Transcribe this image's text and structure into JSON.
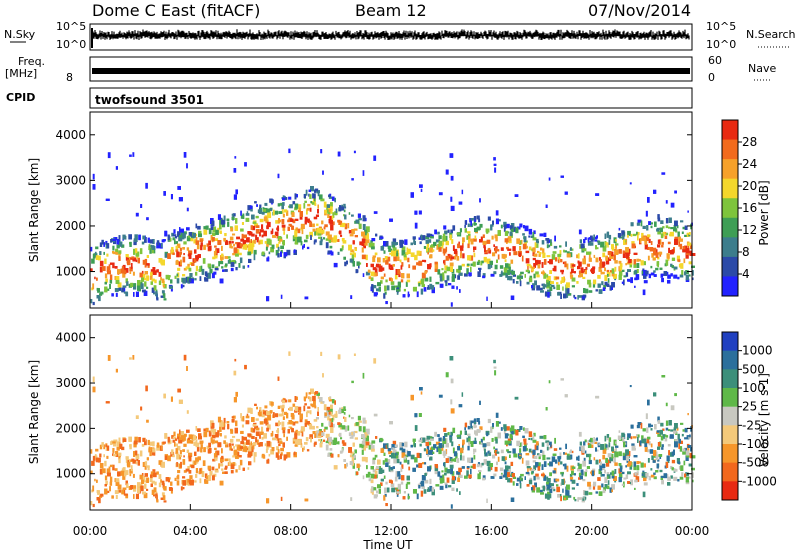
{
  "header": {
    "station": "Dome C East (fitACF)",
    "beam": "Beam 12",
    "date": "07/Nov/2014"
  },
  "top_panels": {
    "nsky_label": "N.Sky",
    "nsky_ticks": [
      "10^5",
      "10^0"
    ],
    "nsearch_label": "N.Search",
    "freq_label": "Freq.",
    "freq_unit": "[MHz]",
    "freq_ticks": [
      "8"
    ],
    "nave_label": "Nave",
    "nave_ticks": [
      "60",
      "0"
    ],
    "cpid_label": "CPID",
    "cpid_value": "twofsound 3501"
  },
  "chart_data": [
    {
      "type": "heatmap",
      "name": "power",
      "ylabel": "Slant Range [km]",
      "xlabel": "",
      "xlim_hours": [
        0,
        24
      ],
      "ylim": [
        200,
        4500
      ],
      "y_ticks": [
        1000,
        2000,
        3000,
        4000
      ],
      "colorbar": {
        "label": "Power [dB]",
        "ticks": [
          4,
          8,
          12,
          16,
          20,
          24,
          28
        ],
        "range": [
          0,
          32
        ],
        "colors": [
          "#2222ff",
          "#2b4aa8",
          "#3c7d8c",
          "#3e9e55",
          "#7ec43c",
          "#f4d72c",
          "#f6a12a",
          "#f26b1d",
          "#e82a12"
        ]
      }
    },
    {
      "type": "heatmap",
      "name": "velocity",
      "ylabel": "Slant Range [km]",
      "xlabel": "Time UT",
      "xlim_hours": [
        0,
        24
      ],
      "ylim": [
        200,
        4500
      ],
      "y_ticks": [
        1000,
        2000,
        3000,
        4000
      ],
      "x_ticks": [
        "00:00",
        "04:00",
        "08:00",
        "12:00",
        "16:00",
        "20:00",
        "00:00"
      ],
      "colorbar": {
        "label": "Velocity [m s-1]",
        "ticks": [
          "1000",
          "500",
          "100",
          "25",
          "-25",
          "-100",
          "-500",
          "-1000"
        ],
        "colors": [
          "#2040c0",
          "#2b6f9c",
          "#3c8f7a",
          "#5fb848",
          "#c8c8c0",
          "#f4c97a",
          "#f6962a",
          "#f2681d",
          "#e82a12"
        ]
      }
    }
  ]
}
